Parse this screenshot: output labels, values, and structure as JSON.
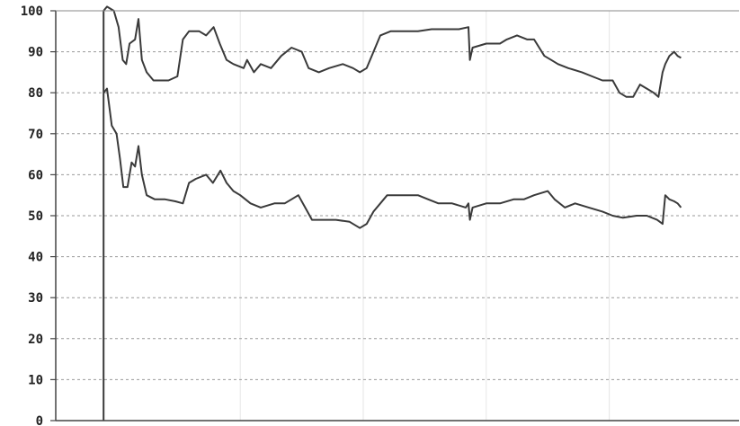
{
  "chart_data": {
    "type": "line",
    "title": "",
    "xlabel": "",
    "ylabel": "",
    "ylim": [
      0,
      100
    ],
    "xlim": [
      0,
      100
    ],
    "yticks": [
      "0",
      "10",
      "20",
      "30",
      "40",
      "50",
      "60",
      "70",
      "80",
      "90",
      "100"
    ],
    "grid": true,
    "legend": "none",
    "line_color": "#3a3a3a",
    "series": [
      {
        "values": [
          [
            7,
            0
          ],
          [
            7,
            100
          ],
          [
            7.5,
            101
          ],
          [
            8.5,
            100
          ],
          [
            9.2,
            96
          ],
          [
            9.8,
            88
          ],
          [
            10.3,
            87
          ],
          [
            10.8,
            92
          ],
          [
            11.6,
            93
          ],
          [
            12.1,
            98
          ],
          [
            12.6,
            88
          ],
          [
            13.3,
            85
          ],
          [
            14.3,
            83
          ],
          [
            16.5,
            83
          ],
          [
            17.8,
            84
          ],
          [
            18.6,
            93
          ],
          [
            19.5,
            95
          ],
          [
            21,
            95
          ],
          [
            22,
            94
          ],
          [
            23.1,
            96
          ],
          [
            24,
            92
          ],
          [
            25,
            88
          ],
          [
            26,
            87
          ],
          [
            27.5,
            86
          ],
          [
            28,
            88
          ],
          [
            29,
            85
          ],
          [
            30,
            87
          ],
          [
            31.5,
            86
          ],
          [
            33,
            89
          ],
          [
            34.5,
            91
          ],
          [
            36,
            90
          ],
          [
            37,
            86
          ],
          [
            38.5,
            85
          ],
          [
            40,
            86
          ],
          [
            42,
            87
          ],
          [
            43.5,
            86
          ],
          [
            44.5,
            85
          ],
          [
            45.5,
            86
          ],
          [
            46.5,
            90
          ],
          [
            47.5,
            94
          ],
          [
            49,
            95
          ],
          [
            51,
            95
          ],
          [
            53,
            95
          ],
          [
            55,
            95.5
          ],
          [
            57,
            95.5
          ],
          [
            59,
            95.5
          ],
          [
            60.4,
            96
          ],
          [
            60.6,
            88
          ],
          [
            61,
            91
          ],
          [
            63,
            92
          ],
          [
            65,
            92
          ],
          [
            66,
            93
          ],
          [
            67.5,
            94
          ],
          [
            69,
            93
          ],
          [
            70,
            93
          ],
          [
            71.5,
            89
          ],
          [
            72.5,
            88
          ],
          [
            73.5,
            87
          ],
          [
            75,
            86
          ],
          [
            77,
            85
          ],
          [
            78.5,
            84
          ],
          [
            80,
            83
          ],
          [
            81.5,
            83
          ],
          [
            82.5,
            80
          ],
          [
            83.5,
            79
          ],
          [
            84.5,
            79
          ],
          [
            85.5,
            82
          ],
          [
            86.5,
            81
          ],
          [
            87.5,
            80
          ],
          [
            88.2,
            79
          ],
          [
            88.8,
            85
          ],
          [
            89.2,
            87
          ],
          [
            89.8,
            89
          ],
          [
            90.5,
            90
          ],
          [
            91,
            89
          ],
          [
            91.5,
            88.5
          ]
        ]
      },
      {
        "values": [
          [
            7,
            80
          ],
          [
            7.5,
            81
          ],
          [
            8.2,
            72
          ],
          [
            8.9,
            70
          ],
          [
            9.4,
            64
          ],
          [
            9.9,
            57
          ],
          [
            10.5,
            57
          ],
          [
            11.1,
            63
          ],
          [
            11.6,
            62
          ],
          [
            12.1,
            67
          ],
          [
            12.6,
            60
          ],
          [
            13.3,
            55
          ],
          [
            14.5,
            54
          ],
          [
            16,
            54
          ],
          [
            17.5,
            53.5
          ],
          [
            18.6,
            53
          ],
          [
            19.5,
            58
          ],
          [
            20.5,
            59
          ],
          [
            22,
            60
          ],
          [
            23,
            58
          ],
          [
            24.1,
            61
          ],
          [
            25,
            58
          ],
          [
            26,
            56
          ],
          [
            27,
            55
          ],
          [
            28.5,
            53
          ],
          [
            30,
            52
          ],
          [
            32,
            53
          ],
          [
            33.5,
            53
          ],
          [
            34.5,
            54
          ],
          [
            35.5,
            55
          ],
          [
            36.5,
            52
          ],
          [
            37.5,
            49
          ],
          [
            39.5,
            49
          ],
          [
            41,
            49
          ],
          [
            43,
            48.5
          ],
          [
            44.5,
            47
          ],
          [
            45.5,
            48
          ],
          [
            46.5,
            51
          ],
          [
            47.5,
            53
          ],
          [
            48.5,
            55
          ],
          [
            51,
            55
          ],
          [
            53,
            55
          ],
          [
            54.5,
            54
          ],
          [
            56,
            53
          ],
          [
            58,
            53
          ],
          [
            60,
            52
          ],
          [
            60.4,
            53
          ],
          [
            60.6,
            49
          ],
          [
            61,
            52
          ],
          [
            63,
            53
          ],
          [
            65,
            53
          ],
          [
            67,
            54
          ],
          [
            68.5,
            54
          ],
          [
            70,
            55
          ],
          [
            72,
            56
          ],
          [
            73,
            54
          ],
          [
            74.5,
            52
          ],
          [
            76,
            53
          ],
          [
            78,
            52
          ],
          [
            80,
            51
          ],
          [
            81.5,
            50
          ],
          [
            83,
            49.5
          ],
          [
            85,
            50
          ],
          [
            86.5,
            50
          ],
          [
            88,
            49
          ],
          [
            88.8,
            48
          ],
          [
            89.2,
            55
          ],
          [
            89.8,
            54
          ],
          [
            90.5,
            53.5
          ],
          [
            91,
            53
          ],
          [
            91.5,
            52
          ]
        ]
      }
    ]
  }
}
